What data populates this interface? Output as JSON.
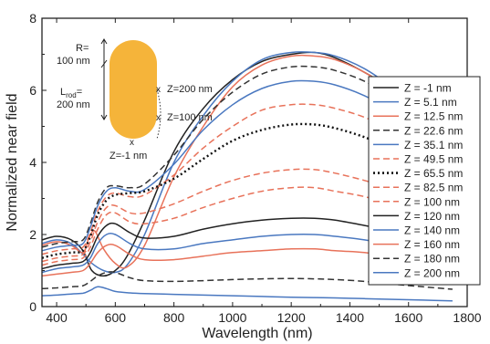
{
  "chart_data": {
    "type": "line",
    "xlabel": "Wavelength (nm)",
    "ylabel": "Normalized near field",
    "xlim": [
      350,
      1800
    ],
    "ylim": [
      0,
      8
    ],
    "x_ticks": [
      400,
      600,
      800,
      1000,
      1200,
      1400,
      1600,
      1800
    ],
    "y_ticks": [
      0,
      2,
      4,
      6,
      8
    ],
    "legend_position": "right",
    "grid": false,
    "inset": {
      "r_label_1": "R=",
      "r_label_2": "100 nm",
      "lrod_label_1": "L",
      "lrod_label_sub": "rod",
      "lrod_label_eq": "=",
      "lrod_label_2": "200 nm",
      "z_top": "Z=200 nm",
      "z_mid": "Z=100 nm",
      "z_bot": "Z=-1 nm",
      "rod_color": "#f5b43a",
      "marker": "x"
    },
    "series": [
      {
        "name": "Z = -1 nm",
        "color": "#222222",
        "dash": "solid",
        "points": [
          [
            350,
            1.85
          ],
          [
            400,
            1.95
          ],
          [
            450,
            1.85
          ],
          [
            490,
            1.55
          ],
          [
            520,
            1.0
          ],
          [
            560,
            0.85
          ],
          [
            600,
            1.0
          ],
          [
            640,
            1.4
          ],
          [
            700,
            2.4
          ],
          [
            800,
            4.3
          ],
          [
            900,
            5.5
          ],
          [
            1000,
            6.3
          ],
          [
            1100,
            6.8
          ],
          [
            1200,
            7.0
          ],
          [
            1280,
            7.05
          ],
          [
            1350,
            6.9
          ],
          [
            1450,
            6.5
          ],
          [
            1550,
            6.0
          ],
          [
            1650,
            5.3
          ],
          [
            1750,
            4.6
          ]
        ]
      },
      {
        "name": "Z = 5.1 nm",
        "color": "#4a78c0",
        "dash": "solid",
        "points": [
          [
            350,
            1.75
          ],
          [
            400,
            1.85
          ],
          [
            450,
            1.75
          ],
          [
            490,
            1.45
          ],
          [
            520,
            1.2
          ],
          [
            560,
            1.0
          ],
          [
            600,
            0.95
          ],
          [
            640,
            1.15
          ],
          [
            700,
            2.0
          ],
          [
            800,
            4.0
          ],
          [
            900,
            5.3
          ],
          [
            1000,
            6.25
          ],
          [
            1100,
            6.85
          ],
          [
            1200,
            7.05
          ],
          [
            1280,
            7.05
          ],
          [
            1350,
            6.95
          ],
          [
            1450,
            6.6
          ],
          [
            1550,
            6.05
          ],
          [
            1650,
            5.4
          ],
          [
            1750,
            4.7
          ]
        ]
      },
      {
        "name": "Z = 12.5 nm",
        "color": "#e8725a",
        "dash": "solid",
        "points": [
          [
            350,
            1.7
          ],
          [
            400,
            1.8
          ],
          [
            450,
            1.7
          ],
          [
            490,
            1.5
          ],
          [
            510,
            1.9
          ],
          [
            530,
            2.1
          ],
          [
            560,
            1.6
          ],
          [
            600,
            1.2
          ],
          [
            640,
            1.1
          ],
          [
            700,
            1.7
          ],
          [
            800,
            3.6
          ],
          [
            900,
            5.0
          ],
          [
            1000,
            6.1
          ],
          [
            1100,
            6.7
          ],
          [
            1200,
            6.95
          ],
          [
            1280,
            6.95
          ],
          [
            1350,
            6.85
          ],
          [
            1450,
            6.5
          ],
          [
            1550,
            5.95
          ],
          [
            1650,
            5.3
          ],
          [
            1750,
            4.6
          ]
        ]
      },
      {
        "name": "Z = 22.6 nm",
        "color": "#333333",
        "dash": "dashed",
        "points": [
          [
            350,
            1.65
          ],
          [
            400,
            1.75
          ],
          [
            450,
            1.8
          ],
          [
            490,
            1.85
          ],
          [
            515,
            2.3
          ],
          [
            540,
            2.9
          ],
          [
            570,
            3.3
          ],
          [
            600,
            3.35
          ],
          [
            650,
            3.3
          ],
          [
            700,
            3.4
          ],
          [
            800,
            4.2
          ],
          [
            900,
            5.2
          ],
          [
            1000,
            5.95
          ],
          [
            1100,
            6.45
          ],
          [
            1200,
            6.65
          ],
          [
            1280,
            6.65
          ],
          [
            1350,
            6.55
          ],
          [
            1450,
            6.25
          ],
          [
            1550,
            5.75
          ],
          [
            1650,
            5.15
          ],
          [
            1750,
            4.5
          ]
        ]
      },
      {
        "name": "Z = 35.1 nm",
        "color": "#4a78c0",
        "dash": "solid",
        "points": [
          [
            350,
            1.55
          ],
          [
            400,
            1.65
          ],
          [
            450,
            1.7
          ],
          [
            490,
            1.75
          ],
          [
            515,
            2.2
          ],
          [
            540,
            2.8
          ],
          [
            570,
            3.2
          ],
          [
            600,
            3.3
          ],
          [
            650,
            3.2
          ],
          [
            700,
            3.25
          ],
          [
            800,
            3.95
          ],
          [
            900,
            4.9
          ],
          [
            1000,
            5.6
          ],
          [
            1100,
            6.05
          ],
          [
            1200,
            6.25
          ],
          [
            1280,
            6.25
          ],
          [
            1350,
            6.15
          ],
          [
            1450,
            5.85
          ],
          [
            1550,
            5.4
          ],
          [
            1650,
            4.85
          ],
          [
            1750,
            4.25
          ]
        ]
      },
      {
        "name": "Z = 49.5 nm",
        "color": "#e8725a",
        "dash": "dashed",
        "points": [
          [
            350,
            1.45
          ],
          [
            400,
            1.55
          ],
          [
            450,
            1.6
          ],
          [
            490,
            1.65
          ],
          [
            515,
            2.05
          ],
          [
            540,
            2.65
          ],
          [
            570,
            3.05
          ],
          [
            600,
            3.15
          ],
          [
            650,
            3.05
          ],
          [
            700,
            3.1
          ],
          [
            800,
            3.65
          ],
          [
            900,
            4.4
          ],
          [
            1000,
            5.0
          ],
          [
            1100,
            5.45
          ],
          [
            1200,
            5.6
          ],
          [
            1280,
            5.6
          ],
          [
            1350,
            5.5
          ],
          [
            1450,
            5.25
          ],
          [
            1550,
            4.85
          ],
          [
            1650,
            4.35
          ],
          [
            1750,
            3.85
          ]
        ]
      },
      {
        "name": "Z = 65.5 nm",
        "color": "#111111",
        "dash": "dotted",
        "points": [
          [
            350,
            1.35
          ],
          [
            400,
            1.45
          ],
          [
            450,
            1.5
          ],
          [
            490,
            1.55
          ],
          [
            515,
            1.95
          ],
          [
            540,
            2.55
          ],
          [
            570,
            2.95
          ],
          [
            600,
            3.1
          ],
          [
            650,
            3.15
          ],
          [
            700,
            3.2
          ],
          [
            800,
            3.55
          ],
          [
            900,
            4.1
          ],
          [
            1000,
            4.6
          ],
          [
            1100,
            4.9
          ],
          [
            1200,
            5.05
          ],
          [
            1280,
            5.05
          ],
          [
            1350,
            4.95
          ],
          [
            1450,
            4.7
          ],
          [
            1550,
            4.35
          ],
          [
            1650,
            3.95
          ],
          [
            1750,
            3.5
          ]
        ]
      },
      {
        "name": "Z = 82.5 nm",
        "color": "#e8725a",
        "dash": "dashed",
        "points": [
          [
            350,
            1.25
          ],
          [
            400,
            1.35
          ],
          [
            450,
            1.4
          ],
          [
            490,
            1.45
          ],
          [
            515,
            1.8
          ],
          [
            540,
            2.35
          ],
          [
            570,
            2.75
          ],
          [
            600,
            2.8
          ],
          [
            650,
            2.6
          ],
          [
            700,
            2.6
          ],
          [
            800,
            2.85
          ],
          [
            900,
            3.2
          ],
          [
            1000,
            3.5
          ],
          [
            1100,
            3.7
          ],
          [
            1200,
            3.8
          ],
          [
            1280,
            3.8
          ],
          [
            1350,
            3.7
          ],
          [
            1450,
            3.5
          ],
          [
            1550,
            3.25
          ],
          [
            1650,
            2.95
          ],
          [
            1750,
            2.65
          ]
        ]
      },
      {
        "name": "Z = 100 nm",
        "color": "#e8725a",
        "dash": "dashed",
        "points": [
          [
            350,
            1.15
          ],
          [
            400,
            1.25
          ],
          [
            450,
            1.3
          ],
          [
            490,
            1.35
          ],
          [
            515,
            1.65
          ],
          [
            540,
            2.15
          ],
          [
            570,
            2.55
          ],
          [
            600,
            2.6
          ],
          [
            650,
            2.35
          ],
          [
            700,
            2.3
          ],
          [
            800,
            2.45
          ],
          [
            900,
            2.75
          ],
          [
            1000,
            3.0
          ],
          [
            1100,
            3.2
          ],
          [
            1200,
            3.3
          ],
          [
            1280,
            3.3
          ],
          [
            1350,
            3.2
          ],
          [
            1450,
            3.05
          ],
          [
            1550,
            2.8
          ],
          [
            1650,
            2.55
          ],
          [
            1750,
            2.3
          ]
        ]
      },
      {
        "name": "Z = 120 nm",
        "color": "#222222",
        "dash": "solid",
        "points": [
          [
            350,
            1.05
          ],
          [
            400,
            1.15
          ],
          [
            450,
            1.2
          ],
          [
            490,
            1.25
          ],
          [
            515,
            1.5
          ],
          [
            540,
            1.95
          ],
          [
            570,
            2.25
          ],
          [
            600,
            2.3
          ],
          [
            650,
            2.05
          ],
          [
            700,
            1.9
          ],
          [
            800,
            1.95
          ],
          [
            900,
            2.15
          ],
          [
            1000,
            2.3
          ],
          [
            1100,
            2.4
          ],
          [
            1200,
            2.45
          ],
          [
            1280,
            2.45
          ],
          [
            1350,
            2.4
          ],
          [
            1450,
            2.25
          ],
          [
            1550,
            2.1
          ],
          [
            1650,
            1.9
          ],
          [
            1750,
            1.7
          ]
        ]
      },
      {
        "name": "Z = 140 nm",
        "color": "#4a78c0",
        "dash": "solid",
        "points": [
          [
            350,
            0.95
          ],
          [
            400,
            1.05
          ],
          [
            450,
            1.1
          ],
          [
            490,
            1.15
          ],
          [
            515,
            1.35
          ],
          [
            540,
            1.75
          ],
          [
            570,
            2.0
          ],
          [
            600,
            2.0
          ],
          [
            650,
            1.75
          ],
          [
            700,
            1.6
          ],
          [
            800,
            1.6
          ],
          [
            900,
            1.75
          ],
          [
            1000,
            1.85
          ],
          [
            1100,
            1.95
          ],
          [
            1200,
            2.0
          ],
          [
            1280,
            2.0
          ],
          [
            1350,
            1.95
          ],
          [
            1450,
            1.85
          ],
          [
            1550,
            1.7
          ],
          [
            1650,
            1.55
          ],
          [
            1750,
            1.4
          ]
        ]
      },
      {
        "name": "Z = 160 nm",
        "color": "#e8725a",
        "dash": "solid",
        "points": [
          [
            350,
            0.85
          ],
          [
            400,
            0.9
          ],
          [
            450,
            0.95
          ],
          [
            490,
            1.0
          ],
          [
            515,
            1.2
          ],
          [
            540,
            1.5
          ],
          [
            570,
            1.7
          ],
          [
            600,
            1.7
          ],
          [
            650,
            1.45
          ],
          [
            700,
            1.3
          ],
          [
            800,
            1.3
          ],
          [
            900,
            1.4
          ],
          [
            1000,
            1.5
          ],
          [
            1100,
            1.55
          ],
          [
            1200,
            1.6
          ],
          [
            1280,
            1.6
          ],
          [
            1350,
            1.55
          ],
          [
            1450,
            1.5
          ],
          [
            1550,
            1.38
          ],
          [
            1650,
            1.26
          ],
          [
            1750,
            1.14
          ]
        ]
      },
      {
        "name": "Z = 180 nm",
        "color": "#333333",
        "dash": "dashed",
        "points": [
          [
            350,
            0.5
          ],
          [
            400,
            0.52
          ],
          [
            450,
            0.55
          ],
          [
            490,
            0.58
          ],
          [
            515,
            0.7
          ],
          [
            540,
            0.85
          ],
          [
            570,
            0.95
          ],
          [
            600,
            0.95
          ],
          [
            650,
            0.8
          ],
          [
            700,
            0.72
          ],
          [
            800,
            0.7
          ],
          [
            900,
            0.72
          ],
          [
            1000,
            0.75
          ],
          [
            1100,
            0.77
          ],
          [
            1200,
            0.78
          ],
          [
            1280,
            0.77
          ],
          [
            1350,
            0.75
          ],
          [
            1450,
            0.7
          ],
          [
            1550,
            0.62
          ],
          [
            1650,
            0.55
          ],
          [
            1750,
            0.48
          ]
        ]
      },
      {
        "name": "Z = 200 nm",
        "color": "#4a78c0",
        "dash": "solid",
        "points": [
          [
            350,
            0.3
          ],
          [
            400,
            0.32
          ],
          [
            450,
            0.35
          ],
          [
            490,
            0.37
          ],
          [
            515,
            0.45
          ],
          [
            540,
            0.55
          ],
          [
            570,
            0.5
          ],
          [
            600,
            0.42
          ],
          [
            650,
            0.38
          ],
          [
            700,
            0.36
          ],
          [
            800,
            0.34
          ],
          [
            900,
            0.32
          ],
          [
            1000,
            0.3
          ],
          [
            1100,
            0.28
          ],
          [
            1200,
            0.26
          ],
          [
            1280,
            0.25
          ],
          [
            1350,
            0.24
          ],
          [
            1450,
            0.22
          ],
          [
            1550,
            0.2
          ],
          [
            1650,
            0.18
          ],
          [
            1750,
            0.16
          ]
        ]
      }
    ]
  }
}
